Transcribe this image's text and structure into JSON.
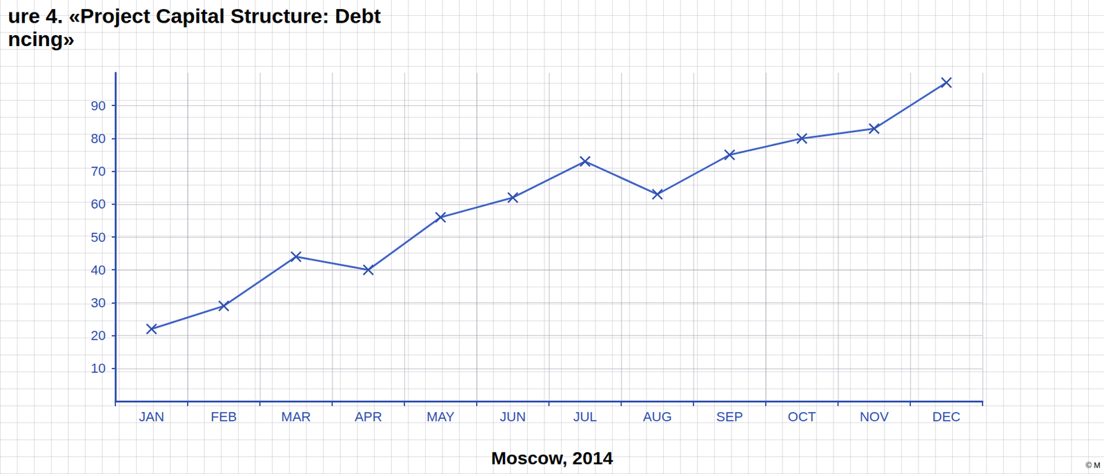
{
  "chart_data": {
    "type": "line",
    "title": "ure 4. «Project Capital Structure: Debt",
    "subtitle": "ncing»",
    "annotations": [
      "Moscow, 2014",
      "© M"
    ],
    "categories": [
      "JAN",
      "FEB",
      "MAR",
      "APR",
      "MAY",
      "JUN",
      "JUL",
      "AUG",
      "SEP",
      "OCT",
      "NOV",
      "DEC"
    ],
    "values": [
      22,
      29,
      44,
      40,
      56,
      62,
      73,
      63,
      75,
      80,
      83,
      97
    ],
    "color": "#3f62c4",
    "marker": "x",
    "ylim": [
      0,
      100
    ],
    "yticks": [
      10,
      20,
      30,
      40,
      50,
      60,
      70,
      80,
      90
    ],
    "grid": true
  }
}
